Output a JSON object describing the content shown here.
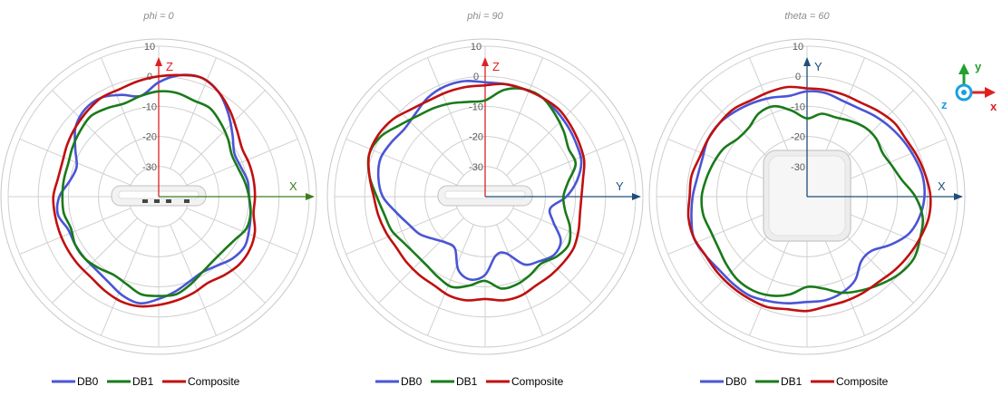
{
  "chart_data": [
    {
      "type": "polar-line",
      "title": "phi = 0",
      "radial_ticks": [
        "10",
        "0",
        "-10",
        "-20",
        "-30"
      ],
      "r_range": [
        -40,
        10
      ],
      "axes": {
        "vertical": {
          "label": "Z",
          "color": "#e02020"
        },
        "horizontal": {
          "label": "X",
          "color": "#3d7d1d"
        }
      },
      "series": [
        {
          "name": "DB0",
          "color": "#4a55d4",
          "values": [
            -2,
            1,
            2,
            0,
            -4,
            -8,
            -11,
            -11,
            -10,
            -10,
            -9,
            -8,
            -7,
            -8,
            -10,
            -11,
            -10,
            -8,
            -6,
            -4,
            -5,
            -7,
            -8,
            -8,
            -8,
            -8,
            -6,
            -7,
            -10,
            -11,
            -8,
            -4,
            -2,
            -2,
            -4,
            -6
          ]
        },
        {
          "name": "DB1",
          "color": "#1a7a1a",
          "values": [
            -5,
            -5,
            -6,
            -6,
            -8,
            -10,
            -12,
            -12,
            -11,
            -10,
            -9,
            -9,
            -11,
            -12,
            -12,
            -11,
            -9,
            -7,
            -7,
            -7,
            -9,
            -10,
            -9,
            -8,
            -8,
            -9,
            -8,
            -8,
            -8,
            -8,
            -7,
            -6,
            -5,
            -6,
            -7,
            -6
          ]
        },
        {
          "name": "Composite",
          "color": "#c01010",
          "values": [
            0,
            1,
            2,
            0,
            -3,
            -6,
            -8,
            -8,
            -8,
            -8,
            -8,
            -6,
            -5,
            -5,
            -6,
            -7,
            -6,
            -5,
            -4,
            -3,
            -3,
            -4,
            -5,
            -5,
            -5,
            -5,
            -5,
            -5,
            -6,
            -6,
            -5,
            -4,
            -3,
            -2,
            -2,
            -1
          ]
        }
      ]
    },
    {
      "type": "polar-line",
      "title": "phi = 90",
      "radial_ticks": [
        "10",
        "0",
        "-10",
        "-20",
        "-30"
      ],
      "r_range": [
        -40,
        10
      ],
      "axes": {
        "vertical": {
          "label": "Z",
          "color": "#e02020"
        },
        "horizontal": {
          "label": "Y",
          "color": "#1f4e79"
        }
      },
      "series": [
        {
          "name": "DB0",
          "color": "#4a55d4",
          "values": [
            -2,
            -2,
            -2,
            -2,
            -3,
            -4,
            -5,
            -6,
            -9,
            -13,
            -18,
            -16,
            -11,
            -10,
            -12,
            -14,
            -20,
            -20,
            -14,
            -12,
            -14,
            -20,
            -20,
            -18,
            -15,
            -13,
            -10,
            -6,
            -4,
            -3,
            -4,
            -5,
            -4,
            -2,
            -1,
            -1
          ]
        },
        {
          "name": "DB1",
          "color": "#1a7a1a",
          "values": [
            -8,
            -4,
            -2,
            -2,
            -4,
            -6,
            -8,
            -8,
            -12,
            -14,
            -13,
            -10,
            -8,
            -9,
            -11,
            -10,
            -9,
            -9,
            -12,
            -10,
            -8,
            -9,
            -10,
            -10,
            -9,
            -7,
            -6,
            -4,
            -1,
            1,
            0,
            -3,
            -5,
            -6,
            -7,
            -8
          ]
        },
        {
          "name": "Composite",
          "color": "#c01010",
          "values": [
            -3,
            -2,
            -2,
            -2,
            -2,
            -3,
            -4,
            -5,
            -7,
            -8,
            -8,
            -7,
            -6,
            -6,
            -6,
            -6,
            -5,
            -5,
            -6,
            -5,
            -5,
            -6,
            -6,
            -6,
            -6,
            -5,
            -4,
            -3,
            -1,
            1,
            1,
            0,
            -2,
            -3,
            -3,
            -3
          ]
        }
      ]
    },
    {
      "type": "polar-line",
      "title": "theta = 60",
      "radial_ticks": [
        "10",
        "0",
        "-10",
        "-20",
        "-30"
      ],
      "r_range": [
        -40,
        10
      ],
      "axes": {
        "vertical": {
          "label": "Y",
          "color": "#1f4e79"
        },
        "horizontal": {
          "label": "X",
          "color": "#1f4e79"
        }
      },
      "series": [
        {
          "name": "DB0",
          "color": "#4a55d4",
          "values": [
            -5,
            -5,
            -6,
            -6,
            -5,
            -4,
            -3,
            -2,
            -1,
            -1,
            -2,
            -4,
            -8,
            -12,
            -12,
            -8,
            -6,
            -5,
            -5,
            -4,
            -3,
            -2,
            -2,
            -2,
            -1,
            0,
            -1,
            -2,
            -3,
            -3,
            -2,
            -2,
            -3,
            -4,
            -5,
            -6
          ]
        },
        {
          "name": "DB1",
          "color": "#1a7a1a",
          "values": [
            -14,
            -12,
            -12,
            -11,
            -10,
            -10,
            -11,
            -10,
            -8,
            -4,
            -1,
            0,
            1,
            0,
            -2,
            -4,
            -6,
            -9,
            -10,
            -7,
            -5,
            -4,
            -4,
            -5,
            -6,
            -6,
            -5,
            -5,
            -6,
            -7,
            -8,
            -10,
            -10,
            -8,
            -8,
            -11
          ]
        },
        {
          "name": "Composite",
          "color": "#c01010",
          "values": [
            -4,
            -4,
            -4,
            -4,
            -3,
            -2,
            -2,
            -1,
            0,
            1,
            1,
            0,
            -1,
            -2,
            -3,
            -3,
            -3,
            -3,
            -2,
            -2,
            -1,
            -1,
            -1,
            -1,
            -1,
            0,
            0,
            -1,
            -1,
            -2,
            -2,
            -2,
            -2,
            -3,
            -3,
            -3
          ]
        }
      ]
    }
  ],
  "legend": [
    {
      "label": "DB0",
      "color": "#4a55d4"
    },
    {
      "label": "DB1",
      "color": "#1a7a1a"
    },
    {
      "label": "Composite",
      "color": "#c01010"
    }
  ],
  "coordinate_icon": {
    "labels": [
      "y",
      "z",
      "x"
    ],
    "colors": [
      "#22a030",
      "#1a9fe0",
      "#e02020"
    ]
  },
  "device_icons": [
    "device-side-view",
    "device-side-view",
    "device-top-view"
  ]
}
